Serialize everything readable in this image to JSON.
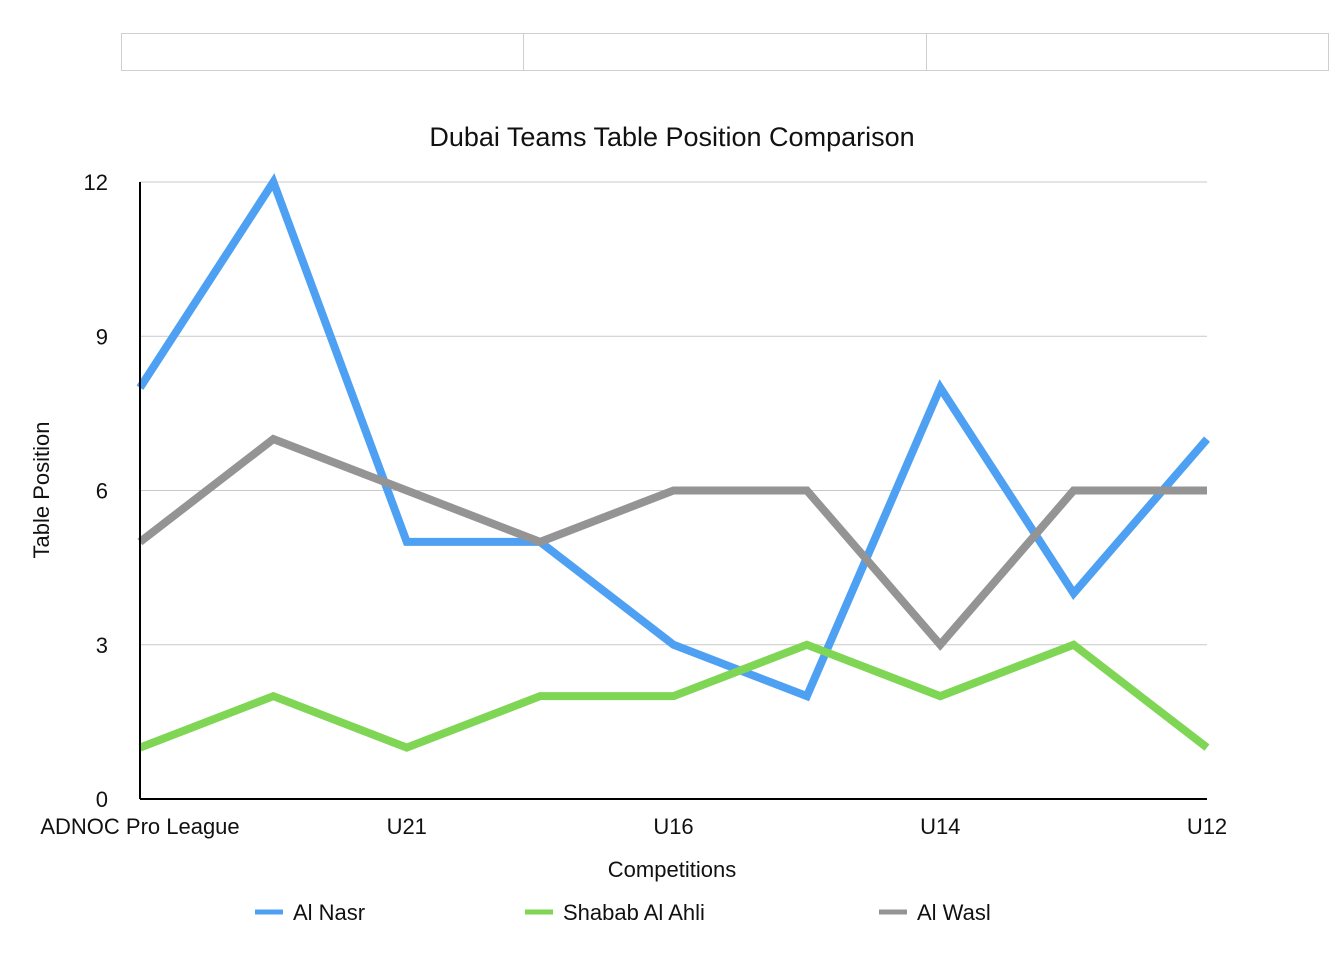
{
  "chart_data": {
    "type": "line",
    "title": "Dubai Teams Table Position Comparison",
    "xlabel": "Competitions",
    "ylabel": "Table Position",
    "categories": [
      "ADNOC Pro League",
      "",
      "U21",
      "",
      "U16",
      "",
      "U14",
      "",
      "U12"
    ],
    "ylim": [
      0,
      12
    ],
    "yticks": [
      0,
      3,
      6,
      9,
      12
    ],
    "grid": true,
    "legend_position": "bottom",
    "series": [
      {
        "name": "Al Nasr",
        "color": "#4ea0f3",
        "values": [
          8,
          12,
          5,
          5,
          3,
          2,
          8,
          4,
          7
        ]
      },
      {
        "name": "Shabab Al Ahli",
        "color": "#7ed654",
        "values": [
          1,
          2,
          1,
          2,
          2,
          3,
          2,
          3,
          1
        ]
      },
      {
        "name": "Al Wasl",
        "color": "#949494",
        "values": [
          5,
          7,
          6,
          5,
          6,
          6,
          3,
          6,
          6
        ]
      }
    ]
  }
}
